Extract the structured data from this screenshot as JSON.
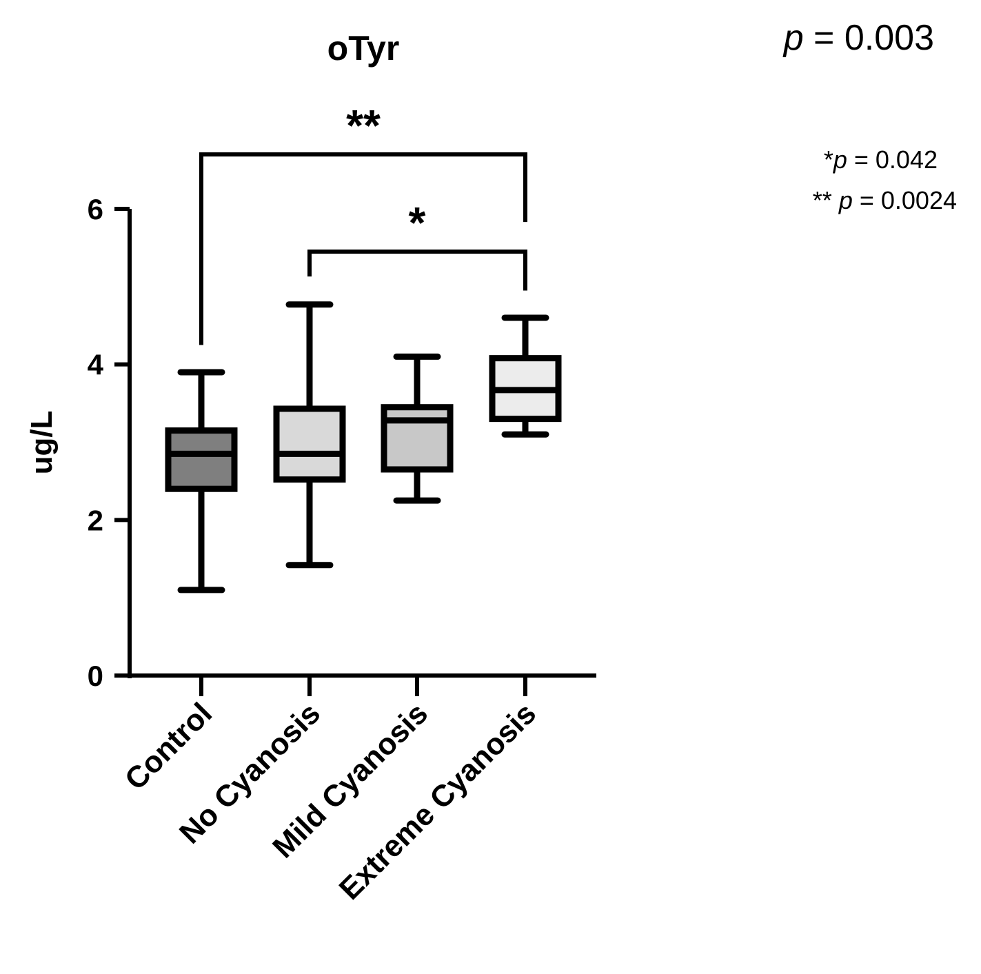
{
  "chart_data": {
    "type": "box",
    "title": "oTyr",
    "xlabel": "",
    "ylabel": "ug/L",
    "ylim": [
      0,
      6
    ],
    "yticks": [
      0,
      2,
      4,
      6
    ],
    "grid": false,
    "categories": [
      "Control",
      "No Cyanosis",
      "Mild Cyanosis",
      "Extreme Cyanosis"
    ],
    "boxes": [
      {
        "category": "Control",
        "min": 1.1,
        "q1": 2.4,
        "median": 2.85,
        "q3": 3.15,
        "max": 3.9,
        "fill": "#7f7f7f"
      },
      {
        "category": "No Cyanosis",
        "min": 1.42,
        "q1": 2.52,
        "median": 2.85,
        "q3": 3.43,
        "max": 4.77,
        "fill": "#d9d9d9"
      },
      {
        "category": "Mild Cyanosis",
        "min": 2.25,
        "q1": 2.65,
        "median": 3.28,
        "q3": 3.45,
        "max": 4.1,
        "fill": "#c8c8c8"
      },
      {
        "category": "Extreme Cyanosis",
        "min": 3.1,
        "q1": 3.3,
        "median": 3.67,
        "q3": 4.08,
        "max": 4.6,
        "fill": "#ececec"
      }
    ],
    "significance": [
      {
        "from": "Control",
        "to": "Extreme Cyanosis",
        "label": "**",
        "y": 6.7,
        "left_drop": 4.25,
        "right_drop": 5.83
      },
      {
        "from": "No Cyanosis",
        "to": "Extreme Cyanosis",
        "label": "*",
        "y": 5.45,
        "left_drop": 5.13,
        "right_drop": 4.95
      }
    ],
    "annotations": {
      "overall_p_italic": "p",
      "overall_p_rest": " = 0.003",
      "note1_prefix": "*",
      "note1_italic": "p",
      "note1_rest": " = 0.042",
      "note2_prefix": "** ",
      "note2_italic": "p",
      "note2_rest": " = 0.0024"
    }
  }
}
